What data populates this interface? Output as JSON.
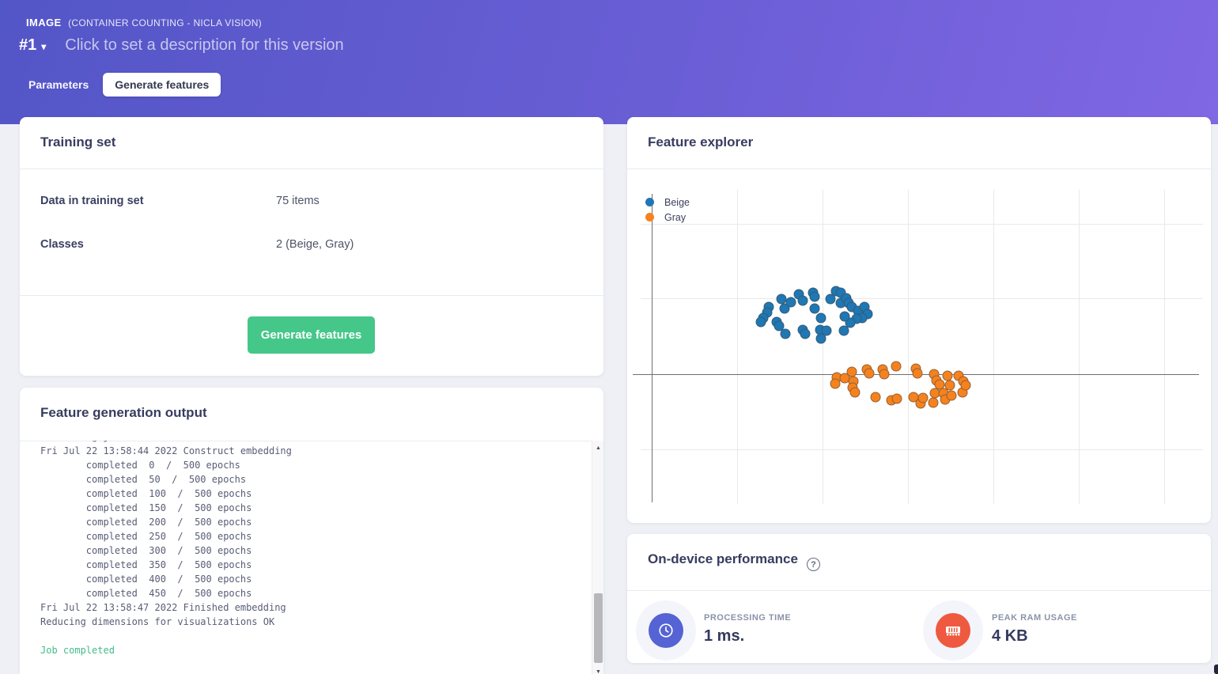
{
  "header": {
    "project_type": "IMAGE",
    "project_name": "(CONTAINER COUNTING - NICLA VISION)",
    "version": "#1",
    "description_placeholder": "Click to set a description for this version",
    "tabs": [
      {
        "label": "Parameters",
        "active": false
      },
      {
        "label": "Generate features",
        "active": true
      }
    ]
  },
  "training_set": {
    "title": "Training set",
    "rows": [
      {
        "label": "Data in training set",
        "value": "75 items"
      },
      {
        "label": "Classes",
        "value": "2 (Beige, Gray)"
      }
    ],
    "generate_button": "Generate features"
  },
  "feature_output": {
    "title": "Feature generation output",
    "lines": [
      {
        "text": "Scheduling job in cluster...",
        "status": "clipped"
      },
      {
        "text": "Fri Jul 22 13:58:44 2022 Construct embedding",
        "status": "normal"
      },
      {
        "text": "        completed  0  /  500 epochs",
        "status": "normal"
      },
      {
        "text": "        completed  50  /  500 epochs",
        "status": "normal"
      },
      {
        "text": "        completed  100  /  500 epochs",
        "status": "normal"
      },
      {
        "text": "        completed  150  /  500 epochs",
        "status": "normal"
      },
      {
        "text": "        completed  200  /  500 epochs",
        "status": "normal"
      },
      {
        "text": "        completed  250  /  500 epochs",
        "status": "normal"
      },
      {
        "text": "        completed  300  /  500 epochs",
        "status": "normal"
      },
      {
        "text": "        completed  350  /  500 epochs",
        "status": "normal"
      },
      {
        "text": "        completed  400  /  500 epochs",
        "status": "normal"
      },
      {
        "text": "        completed  450  /  500 epochs",
        "status": "normal"
      },
      {
        "text": "Fri Jul 22 13:58:47 2022 Finished embedding",
        "status": "normal"
      },
      {
        "text": "Reducing dimensions for visualizations OK",
        "status": "normal"
      },
      {
        "text": "",
        "status": "normal"
      },
      {
        "text": "Job completed",
        "status": "success"
      }
    ],
    "scrollbar": {
      "up_glyph": "▲",
      "down_glyph": "▼"
    }
  },
  "feature_explorer": {
    "title": "Feature explorer"
  },
  "chart_data": {
    "type": "scatter",
    "title": "Feature explorer",
    "xlabel": "",
    "ylabel": "",
    "axes_tick_labels_visible": false,
    "grid": true,
    "legend_position": "top-left",
    "coordinate_system": "plot pixels, origin top-left, plot size 711x397, x-axis line at y=233, y-axis line at x=14",
    "series": [
      {
        "name": "Beige",
        "color": "#1f77b4",
        "points": [
          [
            162,
            148
          ],
          [
            178,
            138
          ],
          [
            182,
            150
          ],
          [
            190,
            142
          ],
          [
            200,
            132
          ],
          [
            205,
            140
          ],
          [
            218,
            130
          ],
          [
            220,
            135
          ],
          [
            220,
            150
          ],
          [
            228,
            162
          ],
          [
            240,
            138
          ],
          [
            247,
            128
          ],
          [
            253,
            130
          ],
          [
            253,
            143
          ],
          [
            260,
            137
          ],
          [
            263,
            143
          ],
          [
            267,
            148
          ],
          [
            275,
            153
          ],
          [
            283,
            148
          ],
          [
            287,
            157
          ],
          [
            280,
            162
          ],
          [
            273,
            163
          ],
          [
            265,
            168
          ],
          [
            258,
            160
          ],
          [
            257,
            178
          ],
          [
            160,
            155
          ],
          [
            155,
            162
          ],
          [
            152,
            167
          ],
          [
            172,
            167
          ],
          [
            175,
            172
          ],
          [
            183,
            182
          ],
          [
            205,
            177
          ],
          [
            208,
            182
          ],
          [
            227,
            177
          ],
          [
            228,
            188
          ],
          [
            235,
            178
          ]
        ]
      },
      {
        "name": "Gray",
        "color": "#f5821e",
        "points": [
          [
            248,
            237
          ],
          [
            246,
            245
          ],
          [
            258,
            238
          ],
          [
            267,
            230
          ],
          [
            269,
            242
          ],
          [
            268,
            250
          ],
          [
            271,
            256
          ],
          [
            286,
            227
          ],
          [
            289,
            232
          ],
          [
            297,
            262
          ],
          [
            306,
            227
          ],
          [
            308,
            233
          ],
          [
            317,
            266
          ],
          [
            323,
            223
          ],
          [
            324,
            264
          ],
          [
            345,
            262
          ],
          [
            348,
            226
          ],
          [
            350,
            232
          ],
          [
            354,
            270
          ],
          [
            357,
            263
          ],
          [
            371,
            233
          ],
          [
            374,
            241
          ],
          [
            372,
            257
          ],
          [
            370,
            269
          ],
          [
            378,
            246
          ],
          [
            383,
            257
          ],
          [
            385,
            265
          ],
          [
            388,
            235
          ],
          [
            391,
            247
          ],
          [
            393,
            260
          ],
          [
            402,
            235
          ],
          [
            407,
            256
          ],
          [
            408,
            242
          ],
          [
            411,
            247
          ]
        ]
      }
    ]
  },
  "performance": {
    "title": "On-device performance",
    "help_glyph": "?",
    "metrics": [
      {
        "label": "PROCESSING TIME",
        "value": "1 ms.",
        "icon": "clock-icon",
        "color": "#5663d4"
      },
      {
        "label": "PEAK RAM USAGE",
        "value": "4 KB",
        "icon": "ram-icon",
        "color": "#ee5940"
      }
    ]
  }
}
